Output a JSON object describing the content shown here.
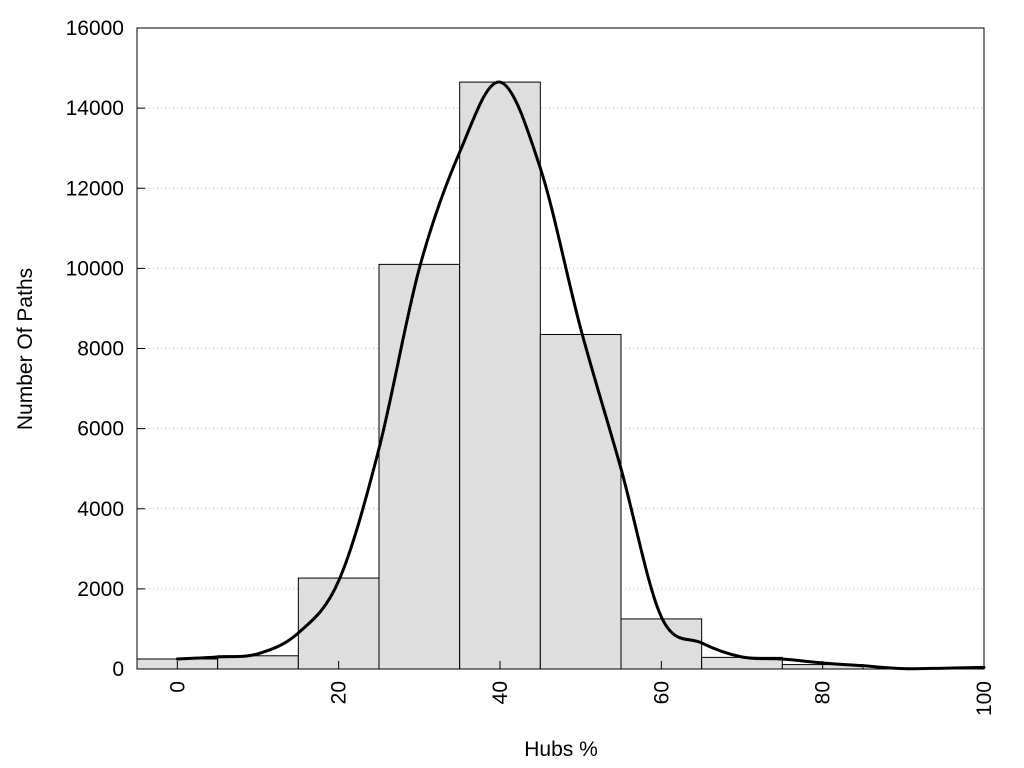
{
  "chart_data": {
    "type": "bar",
    "title": "",
    "xlabel": "Hubs %",
    "ylabel": "Number Of Paths",
    "xlim": [
      -5,
      100
    ],
    "ylim": [
      0,
      16000
    ],
    "x_ticks": [
      "0",
      "20",
      "40",
      "60",
      "80",
      "100"
    ],
    "y_ticks": [
      "0",
      "2000",
      "4000",
      "6000",
      "8000",
      "10000",
      "12000",
      "14000",
      "16000"
    ],
    "grid": "horizontal dotted",
    "legend": "none",
    "bars": [
      {
        "x": 0,
        "value": 250
      },
      {
        "x": 10,
        "value": 330
      },
      {
        "x": 20,
        "value": 2270
      },
      {
        "x": 30,
        "value": 10100
      },
      {
        "x": 40,
        "value": 14650
      },
      {
        "x": 50,
        "value": 8350
      },
      {
        "x": 60,
        "value": 1250
      },
      {
        "x": 70,
        "value": 290
      },
      {
        "x": 80,
        "value": 110
      }
    ],
    "bar_width": 10,
    "curve": [
      [
        0,
        250
      ],
      [
        5,
        300
      ],
      [
        10,
        380
      ],
      [
        15,
        900
      ],
      [
        20,
        2200
      ],
      [
        25,
        5500
      ],
      [
        30,
        10000
      ],
      [
        35,
        12900
      ],
      [
        40,
        14650
      ],
      [
        45,
        12500
      ],
      [
        50,
        8500
      ],
      [
        55,
        5000
      ],
      [
        60,
        1300
      ],
      [
        65,
        650
      ],
      [
        70,
        300
      ],
      [
        75,
        250
      ],
      [
        80,
        150
      ],
      [
        85,
        80
      ],
      [
        90,
        10
      ],
      [
        95,
        20
      ],
      [
        100,
        40
      ]
    ],
    "colors": {
      "bar_fill": "#dedede",
      "bar_stroke": "#000000",
      "curve": "#000000",
      "grid": "#bbbbbb"
    }
  }
}
